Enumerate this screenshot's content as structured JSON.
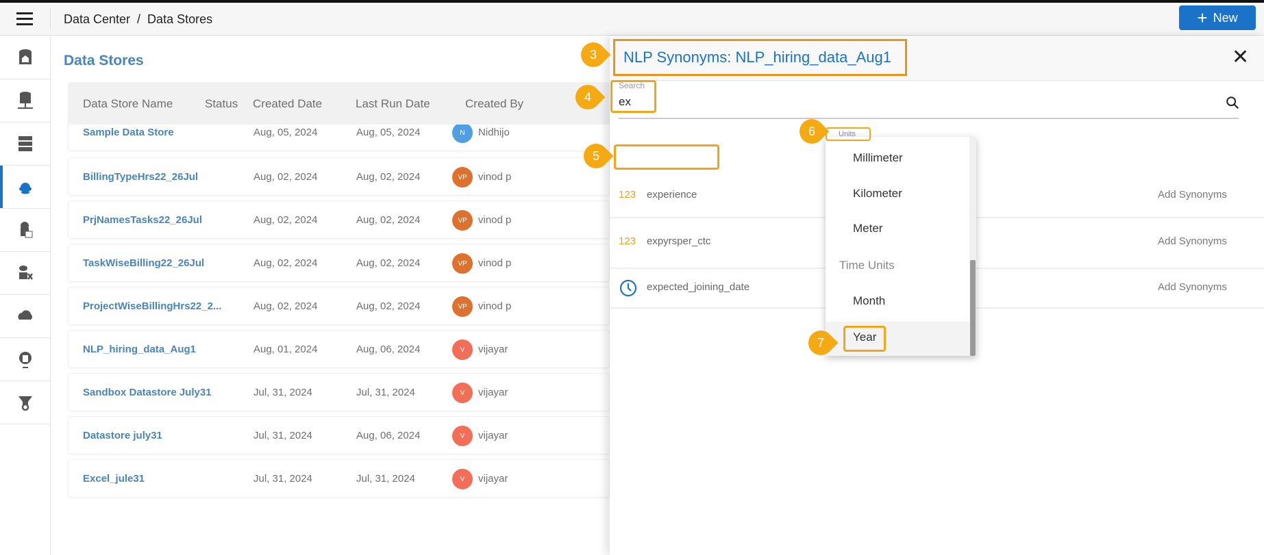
{
  "header": {
    "breadcrumb": "Data Center  /  Data Stores",
    "new_label": "New"
  },
  "sidebar": {
    "items": [
      {
        "icon": "data-home-icon"
      },
      {
        "icon": "database-network-icon"
      },
      {
        "icon": "server-icon"
      },
      {
        "icon": "cloud-database-icon",
        "active": true
      },
      {
        "icon": "database-code-icon"
      },
      {
        "icon": "database-settings-icon"
      },
      {
        "icon": "cloud-icon"
      },
      {
        "icon": "api-gear-icon"
      },
      {
        "icon": "funnel-gear-icon"
      }
    ]
  },
  "main": {
    "title": "Data Stores",
    "columns": [
      "Data Store Name",
      "Status",
      "Created Date",
      "Last Run Date",
      "Created By"
    ],
    "rows": [
      {
        "name": "Sample Data Store",
        "status": "",
        "created": "Aug, 05, 2024",
        "last_run": "Aug, 05, 2024",
        "initials": "N",
        "creator": "Nidhijo",
        "color": "#2f8fdf"
      },
      {
        "name": "BillingTypeHrs22_26Jul",
        "status": "",
        "created": "Aug, 02, 2024",
        "last_run": "Aug, 02, 2024",
        "initials": "VP",
        "creator": "vinod p",
        "color": "#d65a0a"
      },
      {
        "name": "PrjNamesTasks22_26Jul",
        "status": "",
        "created": "Aug, 02, 2024",
        "last_run": "Aug, 02, 2024",
        "initials": "VP",
        "creator": "vinod p",
        "color": "#d65a0a"
      },
      {
        "name": "TaskWiseBilling22_26Jul",
        "status": "",
        "created": "Aug, 02, 2024",
        "last_run": "Aug, 02, 2024",
        "initials": "VP",
        "creator": "vinod p",
        "color": "#d65a0a"
      },
      {
        "name": "ProjectWiseBillingHrs22_2...",
        "status": "",
        "created": "Aug, 02, 2024",
        "last_run": "Aug, 02, 2024",
        "initials": "VP",
        "creator": "vinod p",
        "color": "#d65a0a"
      },
      {
        "name": "NLP_hiring_data_Aug1",
        "status": "",
        "created": "Aug, 01, 2024",
        "last_run": "Aug, 06, 2024",
        "initials": "V",
        "creator": "vijayar",
        "color": "#f0553a"
      },
      {
        "name": "Sandbox Datastore July31",
        "status": "",
        "created": "Jul, 31, 2024",
        "last_run": "Jul, 31, 2024",
        "initials": "V",
        "creator": "vijayar",
        "color": "#f0553a"
      },
      {
        "name": "Datastore july31",
        "status": "",
        "created": "Jul, 31, 2024",
        "last_run": "Aug, 06, 2024",
        "initials": "V",
        "creator": "vijayar",
        "color": "#f0553a"
      },
      {
        "name": "Excel_jule31",
        "status": "",
        "created": "Jul, 31, 2024",
        "last_run": "Jul, 31, 2024",
        "initials": "V",
        "creator": "vijayar",
        "color": "#f0553a"
      }
    ]
  },
  "panel": {
    "title": "NLP Synonyms: NLP_hiring_data_Aug1",
    "search_label": "Search",
    "search_value": "ex",
    "fields": [
      {
        "type": "123",
        "name": "experience",
        "action": "Add Synonyms"
      },
      {
        "type": "123",
        "name": "expyrsper_ctc",
        "action": "Add Synonyms"
      },
      {
        "type": "clock-icon",
        "name": "expected_joining_date",
        "action": "Add Synonyms"
      }
    ],
    "units_label": "Units",
    "dropdown": [
      {
        "label": "Millimeter"
      },
      {
        "label": "Kilometer"
      },
      {
        "label": "Meter"
      },
      {
        "label": "Time Units",
        "group": true
      },
      {
        "label": "Month"
      },
      {
        "label": "Year",
        "selected": true
      }
    ]
  },
  "annotations": [
    "3",
    "4",
    "5",
    "6",
    "7"
  ],
  "colors": {
    "accent": "#1a73c8",
    "annotation": "#f5a913"
  }
}
